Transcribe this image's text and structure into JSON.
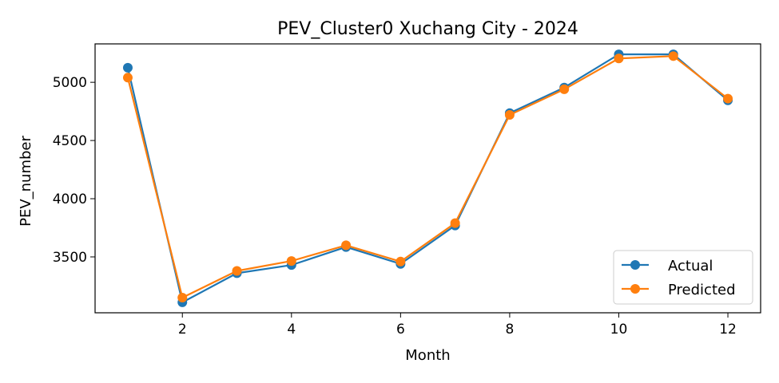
{
  "chart_data": {
    "type": "line",
    "title": "PEV_Cluster0 Xuchang City - 2024",
    "xlabel": "Month",
    "ylabel": "PEV_number",
    "x": [
      1,
      2,
      3,
      4,
      5,
      6,
      7,
      8,
      9,
      10,
      11,
      12
    ],
    "xlim": [
      0.4,
      12.6
    ],
    "ylim": [
      3020,
      5330
    ],
    "xticks": [
      2,
      4,
      6,
      8,
      10,
      12
    ],
    "yticks": [
      3500,
      4000,
      4500,
      5000
    ],
    "grid": false,
    "legend_position": "lower-right",
    "series": [
      {
        "name": "Actual",
        "color": "#1f77b4",
        "marker": "circle",
        "values": [
          5125,
          3110,
          3360,
          3430,
          3585,
          3440,
          3770,
          4735,
          4955,
          5240,
          5240,
          4845
        ]
      },
      {
        "name": "Predicted",
        "color": "#ff7f0e",
        "marker": "circle",
        "values": [
          5040,
          3150,
          3380,
          3465,
          3600,
          3460,
          3790,
          4720,
          4940,
          5205,
          5225,
          4860
        ]
      }
    ]
  }
}
